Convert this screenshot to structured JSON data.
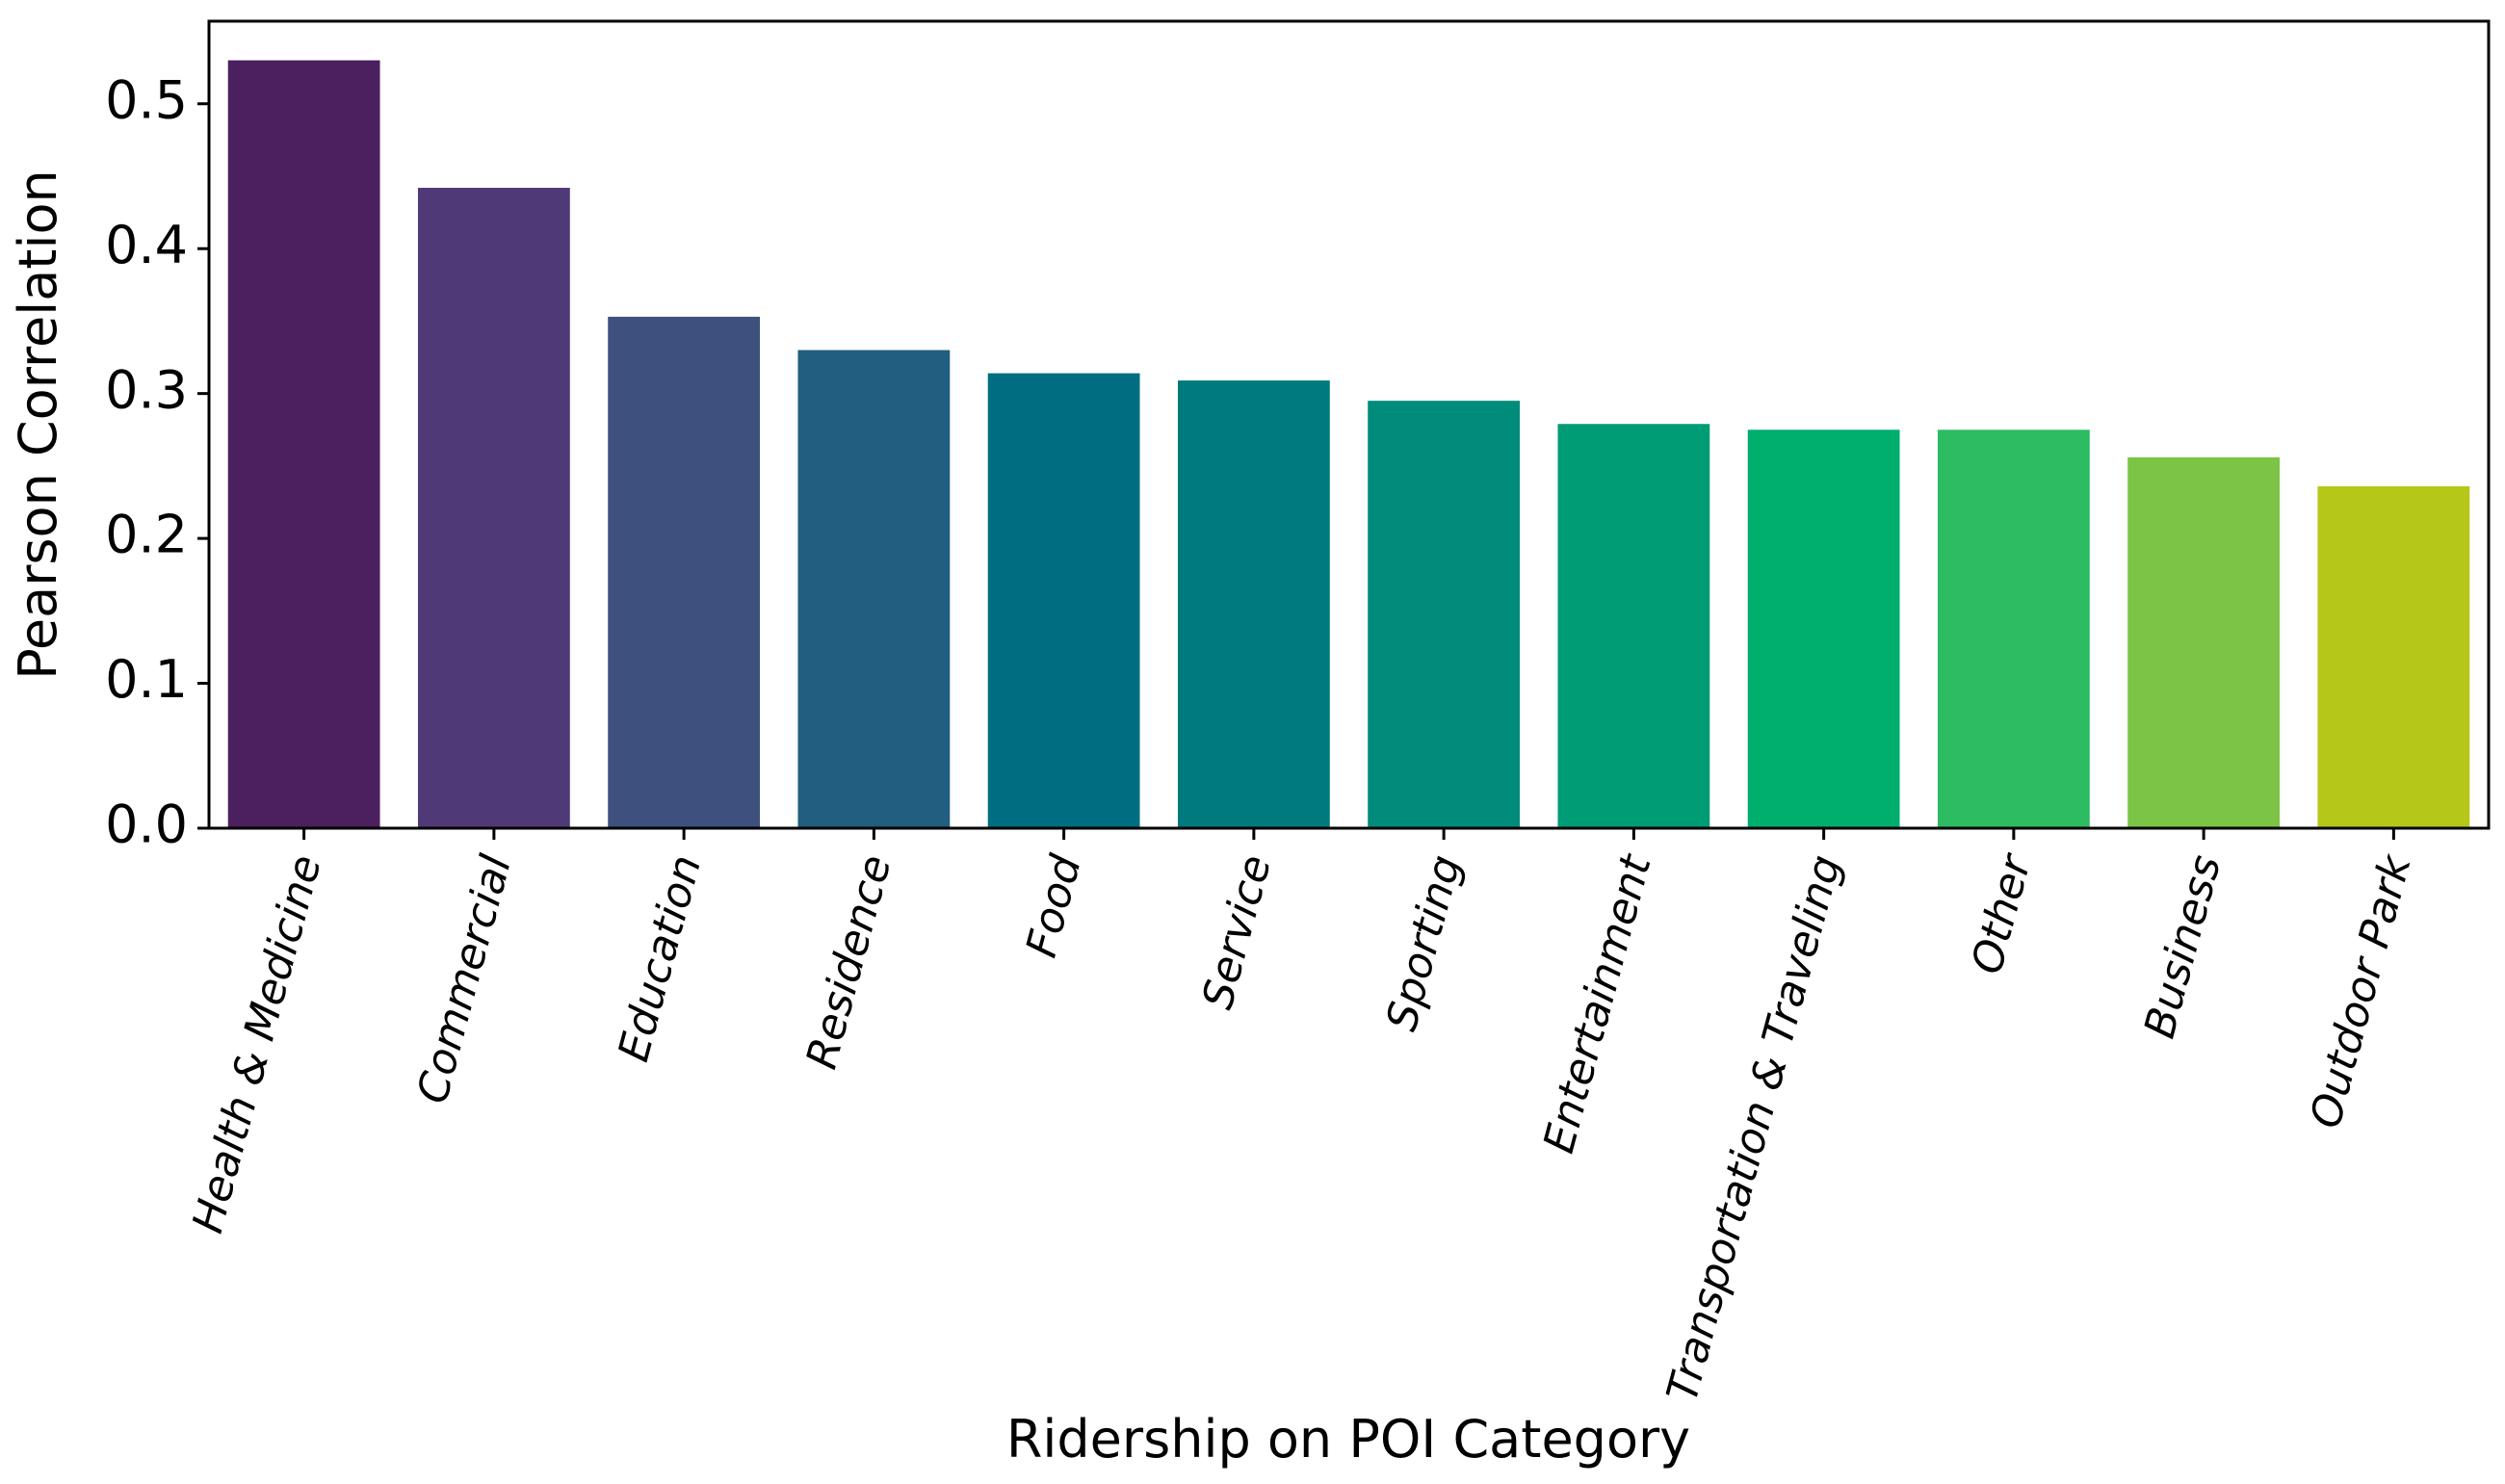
{
  "chart_data": {
    "type": "bar",
    "xlabel": "Ridership on POI Category",
    "ylabel": "Pearson Correlation",
    "ylim": [
      0,
      0.557
    ],
    "yticks": [
      0.0,
      0.1,
      0.2,
      0.3,
      0.4,
      0.5
    ],
    "ytick_labels": [
      "0.0",
      "0.1",
      "0.2",
      "0.3",
      "0.4",
      "0.5"
    ],
    "grid": false,
    "categories": [
      "Health & Medicine",
      "Commercial",
      "Education",
      "Residence",
      "Food",
      "Service",
      "Sporting",
      "Entertainment",
      "Transportation & Traveling",
      "Other",
      "Business",
      "Outdoor Park"
    ],
    "values": [
      0.53,
      0.442,
      0.353,
      0.33,
      0.314,
      0.309,
      0.295,
      0.279,
      0.275,
      0.275,
      0.256,
      0.236
    ],
    "colors": [
      "#4c1f5f",
      "#4f3a77",
      "#3e507e",
      "#225e7f",
      "#006e80",
      "#007a7d",
      "#008b7a",
      "#009c75",
      "#00ae6e",
      "#2dbc62",
      "#7bc445",
      "#b5c719"
    ]
  }
}
